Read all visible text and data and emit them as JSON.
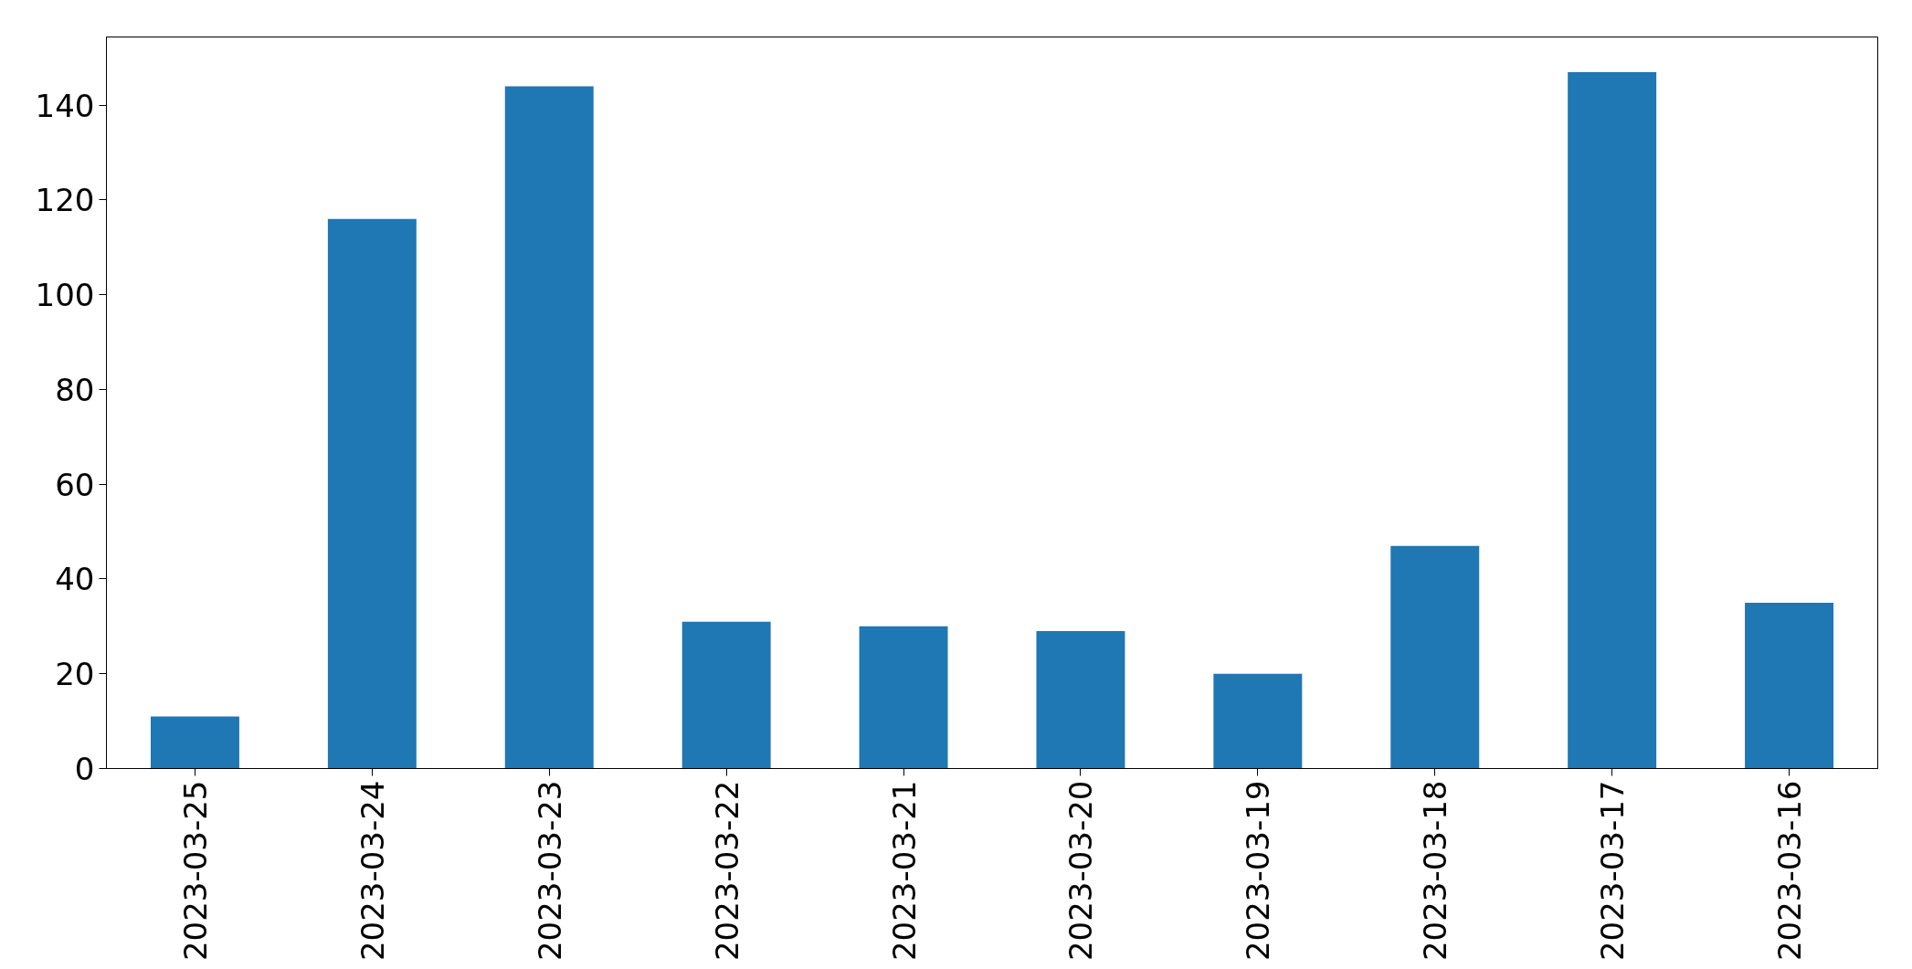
{
  "chart_data": {
    "type": "bar",
    "categories": [
      "2023-03-25",
      "2023-03-24",
      "2023-03-23",
      "2023-03-22",
      "2023-03-21",
      "2023-03-20",
      "2023-03-19",
      "2023-03-18",
      "2023-03-17",
      "2023-03-16"
    ],
    "values": [
      11,
      116,
      144,
      31,
      30,
      29,
      20,
      47,
      147,
      35
    ],
    "color": "#1f77b4",
    "ylim": [
      0,
      154.4
    ],
    "yticks": [
      0,
      20,
      40,
      60,
      80,
      100,
      120,
      140
    ],
    "grid": false
  }
}
